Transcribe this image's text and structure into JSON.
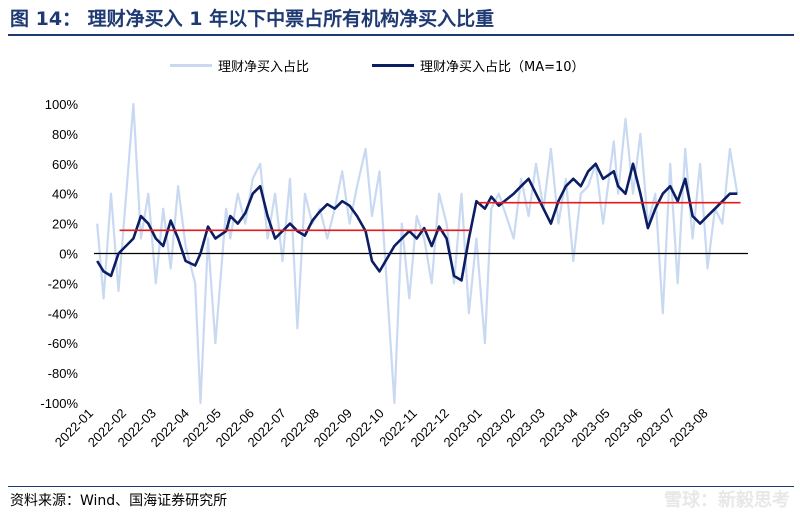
{
  "header": {
    "title": "图 14： 理财净买入 1 年以下中票占所有机构净买入比重"
  },
  "footer": {
    "source": "资料来源：Wind、国海证券研究所",
    "watermark": "雪球：新毅思考"
  },
  "colors": {
    "raw": "#c9d9f2",
    "ma": "#0b1e63",
    "avg": "#e41a1c",
    "zero": "#000000",
    "title": "#1f3a73"
  },
  "chart_data": {
    "type": "line",
    "title": "",
    "xlabel": "",
    "ylabel": "",
    "ylim": [
      -100,
      100
    ],
    "yunit": "%",
    "yticks": [
      -100,
      -80,
      -60,
      -40,
      -20,
      0,
      20,
      40,
      60,
      80,
      100
    ],
    "x_ticks": [
      "2022-01",
      "2022-02",
      "2022-03",
      "2022-04",
      "2022-05",
      "2022-06",
      "2022-07",
      "2022-08",
      "2022-09",
      "2022-10",
      "2022-11",
      "2022-12",
      "2023-01",
      "2023-02",
      "2023-03",
      "2023-04",
      "2023-05",
      "2023-06",
      "2023-07",
      "2023-08"
    ],
    "legend": {
      "position": "top-center",
      "entries": [
        "理财净买入占比",
        "理财净买入占比（MA=10）"
      ]
    },
    "series": [
      {
        "name": "理财净买入占比",
        "x": [
          "2022-01-04",
          "2022-01-10",
          "2022-01-17",
          "2022-01-24",
          "2022-02-07",
          "2022-02-14",
          "2022-02-21",
          "2022-02-28",
          "2022-03-07",
          "2022-03-14",
          "2022-03-21",
          "2022-03-28",
          "2022-04-06",
          "2022-04-11",
          "2022-04-18",
          "2022-04-25",
          "2022-05-05",
          "2022-05-09",
          "2022-05-16",
          "2022-05-23",
          "2022-05-30",
          "2022-06-06",
          "2022-06-13",
          "2022-06-20",
          "2022-06-27",
          "2022-07-04",
          "2022-07-11",
          "2022-07-18",
          "2022-07-25",
          "2022-08-01",
          "2022-08-08",
          "2022-08-15",
          "2022-08-22",
          "2022-08-29",
          "2022-09-05",
          "2022-09-13",
          "2022-09-19",
          "2022-09-26",
          "2022-10-10",
          "2022-10-17",
          "2022-10-24",
          "2022-10-31",
          "2022-11-07",
          "2022-11-14",
          "2022-11-21",
          "2022-11-28",
          "2022-12-05",
          "2022-12-12",
          "2022-12-19",
          "2022-12-26",
          "2023-01-03",
          "2023-01-09",
          "2023-01-16",
          "2023-01-30",
          "2023-02-06",
          "2023-02-13",
          "2023-02-20",
          "2023-02-27",
          "2023-03-06",
          "2023-03-13",
          "2023-03-20",
          "2023-03-27",
          "2023-04-03",
          "2023-04-10",
          "2023-04-17",
          "2023-04-24",
          "2023-05-04",
          "2023-05-08",
          "2023-05-15",
          "2023-05-22",
          "2023-05-29",
          "2023-06-05",
          "2023-06-12",
          "2023-06-19",
          "2023-06-26",
          "2023-07-03",
          "2023-07-10",
          "2023-07-17",
          "2023-07-24",
          "2023-07-31",
          "2023-08-07",
          "2023-08-14",
          "2023-08-21",
          "2023-08-28"
        ],
        "values": [
          20,
          -30,
          40,
          -25,
          100,
          10,
          40,
          -20,
          30,
          -10,
          45,
          5,
          -20,
          -100,
          10,
          -60,
          30,
          10,
          40,
          20,
          50,
          60,
          10,
          40,
          -5,
          50,
          -50,
          40,
          20,
          30,
          10,
          30,
          55,
          20,
          45,
          70,
          25,
          55,
          -100,
          20,
          -30,
          25,
          10,
          -20,
          40,
          20,
          -20,
          40,
          -40,
          10,
          -60,
          30,
          40,
          10,
          50,
          25,
          60,
          30,
          70,
          20,
          50,
          -5,
          40,
          45,
          60,
          20,
          75,
          40,
          90,
          40,
          80,
          20,
          40,
          -40,
          60,
          -20,
          70,
          10,
          60,
          -10,
          30,
          20,
          70,
          40
        ]
      },
      {
        "name": "理财净买入占比（MA=10）",
        "x": [
          "2022-01-04",
          "2022-01-10",
          "2022-01-17",
          "2022-01-24",
          "2022-02-07",
          "2022-02-14",
          "2022-02-21",
          "2022-02-28",
          "2022-03-07",
          "2022-03-14",
          "2022-03-21",
          "2022-03-28",
          "2022-04-06",
          "2022-04-11",
          "2022-04-18",
          "2022-04-25",
          "2022-05-05",
          "2022-05-09",
          "2022-05-16",
          "2022-05-23",
          "2022-05-30",
          "2022-06-06",
          "2022-06-13",
          "2022-06-20",
          "2022-06-27",
          "2022-07-04",
          "2022-07-11",
          "2022-07-18",
          "2022-07-25",
          "2022-08-01",
          "2022-08-08",
          "2022-08-15",
          "2022-08-22",
          "2022-08-29",
          "2022-09-05",
          "2022-09-13",
          "2022-09-19",
          "2022-09-26",
          "2022-10-10",
          "2022-10-17",
          "2022-10-24",
          "2022-10-31",
          "2022-11-07",
          "2022-11-14",
          "2022-11-21",
          "2022-11-28",
          "2022-12-05",
          "2022-12-12",
          "2022-12-19",
          "2022-12-26",
          "2023-01-03",
          "2023-01-09",
          "2023-01-16",
          "2023-01-30",
          "2023-02-06",
          "2023-02-13",
          "2023-02-20",
          "2023-02-27",
          "2023-03-06",
          "2023-03-13",
          "2023-03-20",
          "2023-03-27",
          "2023-04-03",
          "2023-04-10",
          "2023-04-17",
          "2023-04-24",
          "2023-05-04",
          "2023-05-08",
          "2023-05-15",
          "2023-05-22",
          "2023-05-29",
          "2023-06-05",
          "2023-06-12",
          "2023-06-19",
          "2023-06-26",
          "2023-07-03",
          "2023-07-10",
          "2023-07-17",
          "2023-07-24",
          "2023-07-31",
          "2023-08-07",
          "2023-08-14",
          "2023-08-21",
          "2023-08-28"
        ],
        "values": [
          -5,
          -12,
          -15,
          0,
          10,
          25,
          20,
          10,
          5,
          22,
          10,
          -5,
          -8,
          0,
          18,
          10,
          15,
          25,
          20,
          27,
          40,
          45,
          25,
          10,
          15,
          20,
          15,
          12,
          22,
          28,
          33,
          30,
          35,
          32,
          25,
          15,
          -5,
          -12,
          5,
          10,
          15,
          10,
          17,
          5,
          18,
          10,
          -15,
          -18,
          10,
          35,
          30,
          38,
          32,
          40,
          45,
          50,
          40,
          30,
          20,
          35,
          45,
          50,
          45,
          55,
          60,
          50,
          55,
          45,
          40,
          60,
          40,
          17,
          30,
          40,
          45,
          35,
          50,
          25,
          20,
          25,
          30,
          35,
          40,
          40
        ]
      },
      {
        "name": "",
        "x": [
          "2022-01-25",
          "2022-12-20"
        ],
        "values": [
          15.5,
          15.5
        ]
      },
      {
        "name": "",
        "x": [
          "2022-12-28",
          "2023-08-31"
        ],
        "values": [
          34,
          34
        ]
      }
    ]
  }
}
